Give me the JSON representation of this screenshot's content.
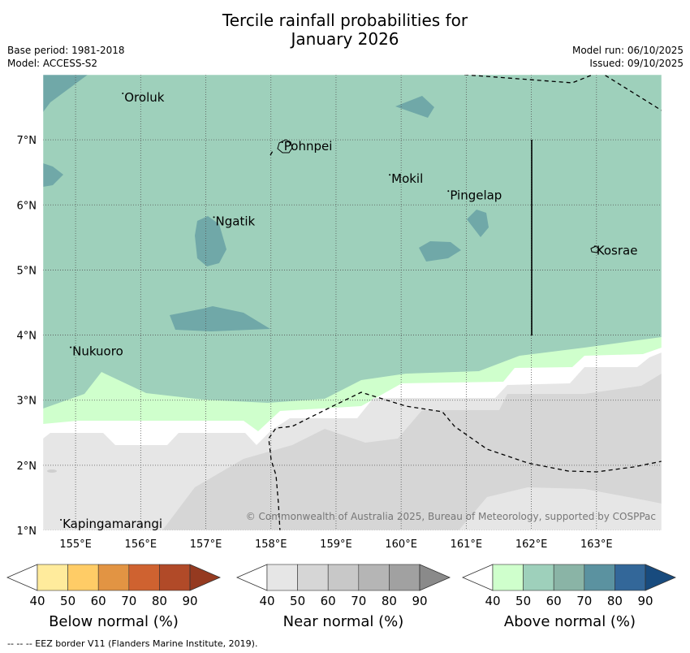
{
  "title": {
    "line1": "Tercile rainfall probabilities for",
    "line2": "January 2026"
  },
  "header": {
    "base_period": "Base period: 1981-2018",
    "model": "Model: ACCESS-S2",
    "model_run": "Model run: 06/10/2025",
    "issued": "Issued: 09/10/2025"
  },
  "map": {
    "lat_ticks": [
      "7°N",
      "6°N",
      "5°N",
      "4°N",
      "3°N",
      "2°N",
      "1°N"
    ],
    "lon_ticks": [
      "155°E",
      "156°E",
      "157°E",
      "158°E",
      "159°E",
      "160°E",
      "161°E",
      "162°E",
      "163°E"
    ],
    "places": [
      {
        "name": "Oroluk",
        "lon": 155.75,
        "lat": 7.65
      },
      {
        "name": "Pohnpei",
        "lon": 158.2,
        "lat": 6.9
      },
      {
        "name": "Mokil",
        "lon": 159.85,
        "lat": 6.4
      },
      {
        "name": "Pingelap",
        "lon": 160.75,
        "lat": 6.15
      },
      {
        "name": "Ngatik",
        "lon": 157.15,
        "lat": 5.75
      },
      {
        "name": "Kosrae",
        "lon": 163.0,
        "lat": 5.3
      },
      {
        "name": "Nukuoro",
        "lon": 154.95,
        "lat": 3.75
      },
      {
        "name": "Kapingamarangi",
        "lon": 154.8,
        "lat": 1.1
      }
    ],
    "copyright": "© Commonwealth of Australia 2025, Bureau of Meteorology, supported by COSPPac",
    "colors": {
      "above_50": "#9ed0bb",
      "above_70": "#70a8a8",
      "above_40": "#cfffcc",
      "near_40": "#e6e6e6",
      "near_50": "#d6d6d6",
      "white_gap": "#ffffff"
    }
  },
  "legends": [
    {
      "name": "below",
      "caption": "Below normal (%)",
      "ticks": [
        "40",
        "50",
        "60",
        "70",
        "80",
        "90"
      ],
      "colors": [
        "#ffeb9c",
        "#ffcc66",
        "#e29443",
        "#cf6230",
        "#b14a28",
        "#953a20"
      ]
    },
    {
      "name": "near",
      "caption": "Near normal (%)",
      "ticks": [
        "40",
        "50",
        "60",
        "70",
        "80",
        "90"
      ],
      "colors": [
        "#e6e6e6",
        "#d6d6d6",
        "#c8c8c8",
        "#b5b5b5",
        "#a1a1a1",
        "#8a8a8a"
      ]
    },
    {
      "name": "above",
      "caption": "Above normal (%)",
      "ticks": [
        "40",
        "50",
        "60",
        "70",
        "80",
        "90"
      ],
      "colors": [
        "#cfffcc",
        "#9ed0bb",
        "#8ab4a6",
        "#5b92a0",
        "#336799",
        "#184b7e"
      ]
    }
  ],
  "footer": {
    "eez_note": "--  --  -- EEZ border V11 (Flanders Marine Institute, 2019)."
  }
}
